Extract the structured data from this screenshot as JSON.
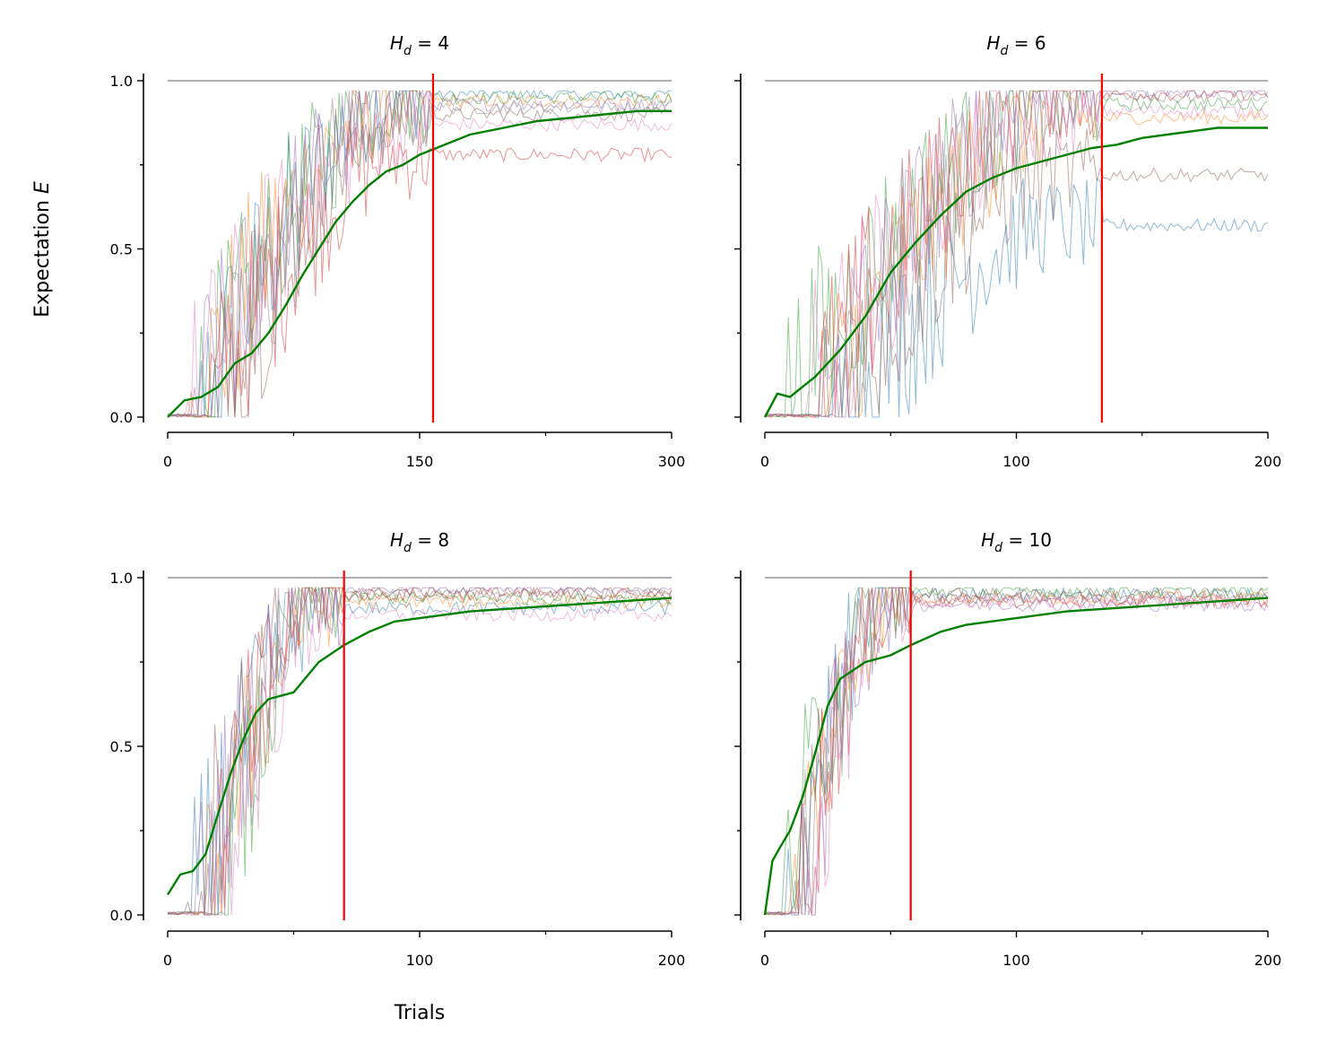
{
  "figure": {
    "ylabel": "Expectation E",
    "xlabel": "Trials"
  },
  "colors": {
    "mean": "#008000",
    "threshold": "#ff0000",
    "reference": "#808080",
    "runs": [
      "#1f77b4",
      "#ff7f0e",
      "#2ca02c",
      "#d62728",
      "#9467bd",
      "#8c564b",
      "#e377c2",
      "#7f7f7f"
    ]
  },
  "chart_data": [
    {
      "type": "line",
      "title_var": "H",
      "title_sub": "d",
      "title_value": "4",
      "xlim": [
        0,
        300
      ],
      "ylim": [
        0,
        1
      ],
      "xticks": [
        0,
        150,
        300
      ],
      "xtick_labels": [
        "0",
        "150",
        "300"
      ],
      "yticks": [
        0,
        0.5,
        1
      ],
      "ytick_labels": [
        "0.0",
        "0.5",
        "1.0"
      ],
      "reference_y": 1.0,
      "threshold_x": 158,
      "mean": [
        [
          0,
          0.0
        ],
        [
          10,
          0.05
        ],
        [
          20,
          0.06
        ],
        [
          30,
          0.09
        ],
        [
          40,
          0.16
        ],
        [
          50,
          0.19
        ],
        [
          60,
          0.25
        ],
        [
          70,
          0.33
        ],
        [
          80,
          0.42
        ],
        [
          90,
          0.5
        ],
        [
          100,
          0.58
        ],
        [
          110,
          0.64
        ],
        [
          120,
          0.69
        ],
        [
          130,
          0.73
        ],
        [
          140,
          0.75
        ],
        [
          150,
          0.78
        ],
        [
          160,
          0.8
        ],
        [
          170,
          0.82
        ],
        [
          180,
          0.84
        ],
        [
          200,
          0.86
        ],
        [
          220,
          0.88
        ],
        [
          240,
          0.89
        ],
        [
          260,
          0.9
        ],
        [
          280,
          0.91
        ],
        [
          300,
          0.91
        ]
      ],
      "runs_final": [
        0.96,
        0.94,
        0.95,
        0.78,
        0.93,
        0.9,
        0.87,
        0.92
      ],
      "runs_start": [
        20,
        14,
        18,
        24,
        16,
        28,
        12,
        30
      ]
    },
    {
      "type": "line",
      "title_var": "H",
      "title_sub": "d",
      "title_value": "6",
      "xlim": [
        0,
        200
      ],
      "ylim": [
        0,
        1
      ],
      "xticks": [
        0,
        100,
        200
      ],
      "xtick_labels": [
        "0",
        "100",
        "200"
      ],
      "yticks": [
        0,
        0.5,
        1
      ],
      "ytick_labels": [
        "",
        "",
        ""
      ],
      "reference_y": 1.0,
      "threshold_x": 134,
      "mean": [
        [
          0,
          0.0
        ],
        [
          5,
          0.07
        ],
        [
          10,
          0.06
        ],
        [
          20,
          0.12
        ],
        [
          30,
          0.2
        ],
        [
          40,
          0.3
        ],
        [
          50,
          0.43
        ],
        [
          60,
          0.52
        ],
        [
          70,
          0.6
        ],
        [
          80,
          0.67
        ],
        [
          90,
          0.71
        ],
        [
          100,
          0.74
        ],
        [
          110,
          0.76
        ],
        [
          120,
          0.78
        ],
        [
          130,
          0.8
        ],
        [
          140,
          0.81
        ],
        [
          150,
          0.83
        ],
        [
          160,
          0.84
        ],
        [
          170,
          0.85
        ],
        [
          180,
          0.86
        ],
        [
          190,
          0.86
        ],
        [
          200,
          0.86
        ]
      ],
      "runs_final": [
        0.57,
        0.89,
        0.93,
        0.96,
        0.97,
        0.72,
        0.91,
        0.95
      ],
      "runs_start": [
        28,
        22,
        6,
        18,
        20,
        24,
        14,
        30
      ]
    },
    {
      "type": "line",
      "title_var": "H",
      "title_sub": "d",
      "title_value": "8",
      "xlim": [
        0,
        200
      ],
      "ylim": [
        0,
        1
      ],
      "xticks": [
        0,
        100,
        200
      ],
      "xtick_labels": [
        "0",
        "100",
        "200"
      ],
      "yticks": [
        0,
        0.5,
        1
      ],
      "ytick_labels": [
        "0.0",
        "0.5",
        "1.0"
      ],
      "reference_y": 1.0,
      "threshold_x": 70,
      "mean": [
        [
          0,
          0.06
        ],
        [
          5,
          0.12
        ],
        [
          10,
          0.13
        ],
        [
          15,
          0.18
        ],
        [
          20,
          0.3
        ],
        [
          25,
          0.42
        ],
        [
          30,
          0.52
        ],
        [
          35,
          0.6
        ],
        [
          40,
          0.64
        ],
        [
          50,
          0.66
        ],
        [
          60,
          0.75
        ],
        [
          70,
          0.8
        ],
        [
          80,
          0.84
        ],
        [
          90,
          0.87
        ],
        [
          100,
          0.88
        ],
        [
          120,
          0.9
        ],
        [
          140,
          0.91
        ],
        [
          160,
          0.92
        ],
        [
          180,
          0.93
        ],
        [
          200,
          0.94
        ]
      ],
      "runs_final": [
        0.91,
        0.93,
        0.94,
        0.95,
        0.97,
        0.96,
        0.89,
        0.95
      ],
      "runs_start": [
        10,
        16,
        22,
        14,
        12,
        8,
        20,
        18
      ]
    },
    {
      "type": "line",
      "title_var": "H",
      "title_sub": "d",
      "title_value": "10",
      "xlim": [
        0,
        200
      ],
      "ylim": [
        0,
        1
      ],
      "xticks": [
        0,
        100,
        200
      ],
      "xtick_labels": [
        "0",
        "100",
        "200"
      ],
      "yticks": [
        0,
        0.5,
        1
      ],
      "ytick_labels": [
        "",
        "",
        ""
      ],
      "reference_y": 1.0,
      "threshold_x": 58,
      "mean": [
        [
          0,
          0.0
        ],
        [
          3,
          0.16
        ],
        [
          6,
          0.2
        ],
        [
          10,
          0.25
        ],
        [
          15,
          0.35
        ],
        [
          20,
          0.48
        ],
        [
          25,
          0.62
        ],
        [
          30,
          0.7
        ],
        [
          40,
          0.75
        ],
        [
          50,
          0.77
        ],
        [
          58,
          0.8
        ],
        [
          70,
          0.84
        ],
        [
          80,
          0.86
        ],
        [
          100,
          0.88
        ],
        [
          120,
          0.9
        ],
        [
          140,
          0.91
        ],
        [
          160,
          0.92
        ],
        [
          180,
          0.93
        ],
        [
          200,
          0.94
        ]
      ],
      "runs_final": [
        0.95,
        0.94,
        0.96,
        0.93,
        0.92,
        0.95,
        0.93,
        0.94
      ],
      "runs_start": [
        8,
        10,
        6,
        12,
        14,
        10,
        16,
        12
      ]
    }
  ]
}
